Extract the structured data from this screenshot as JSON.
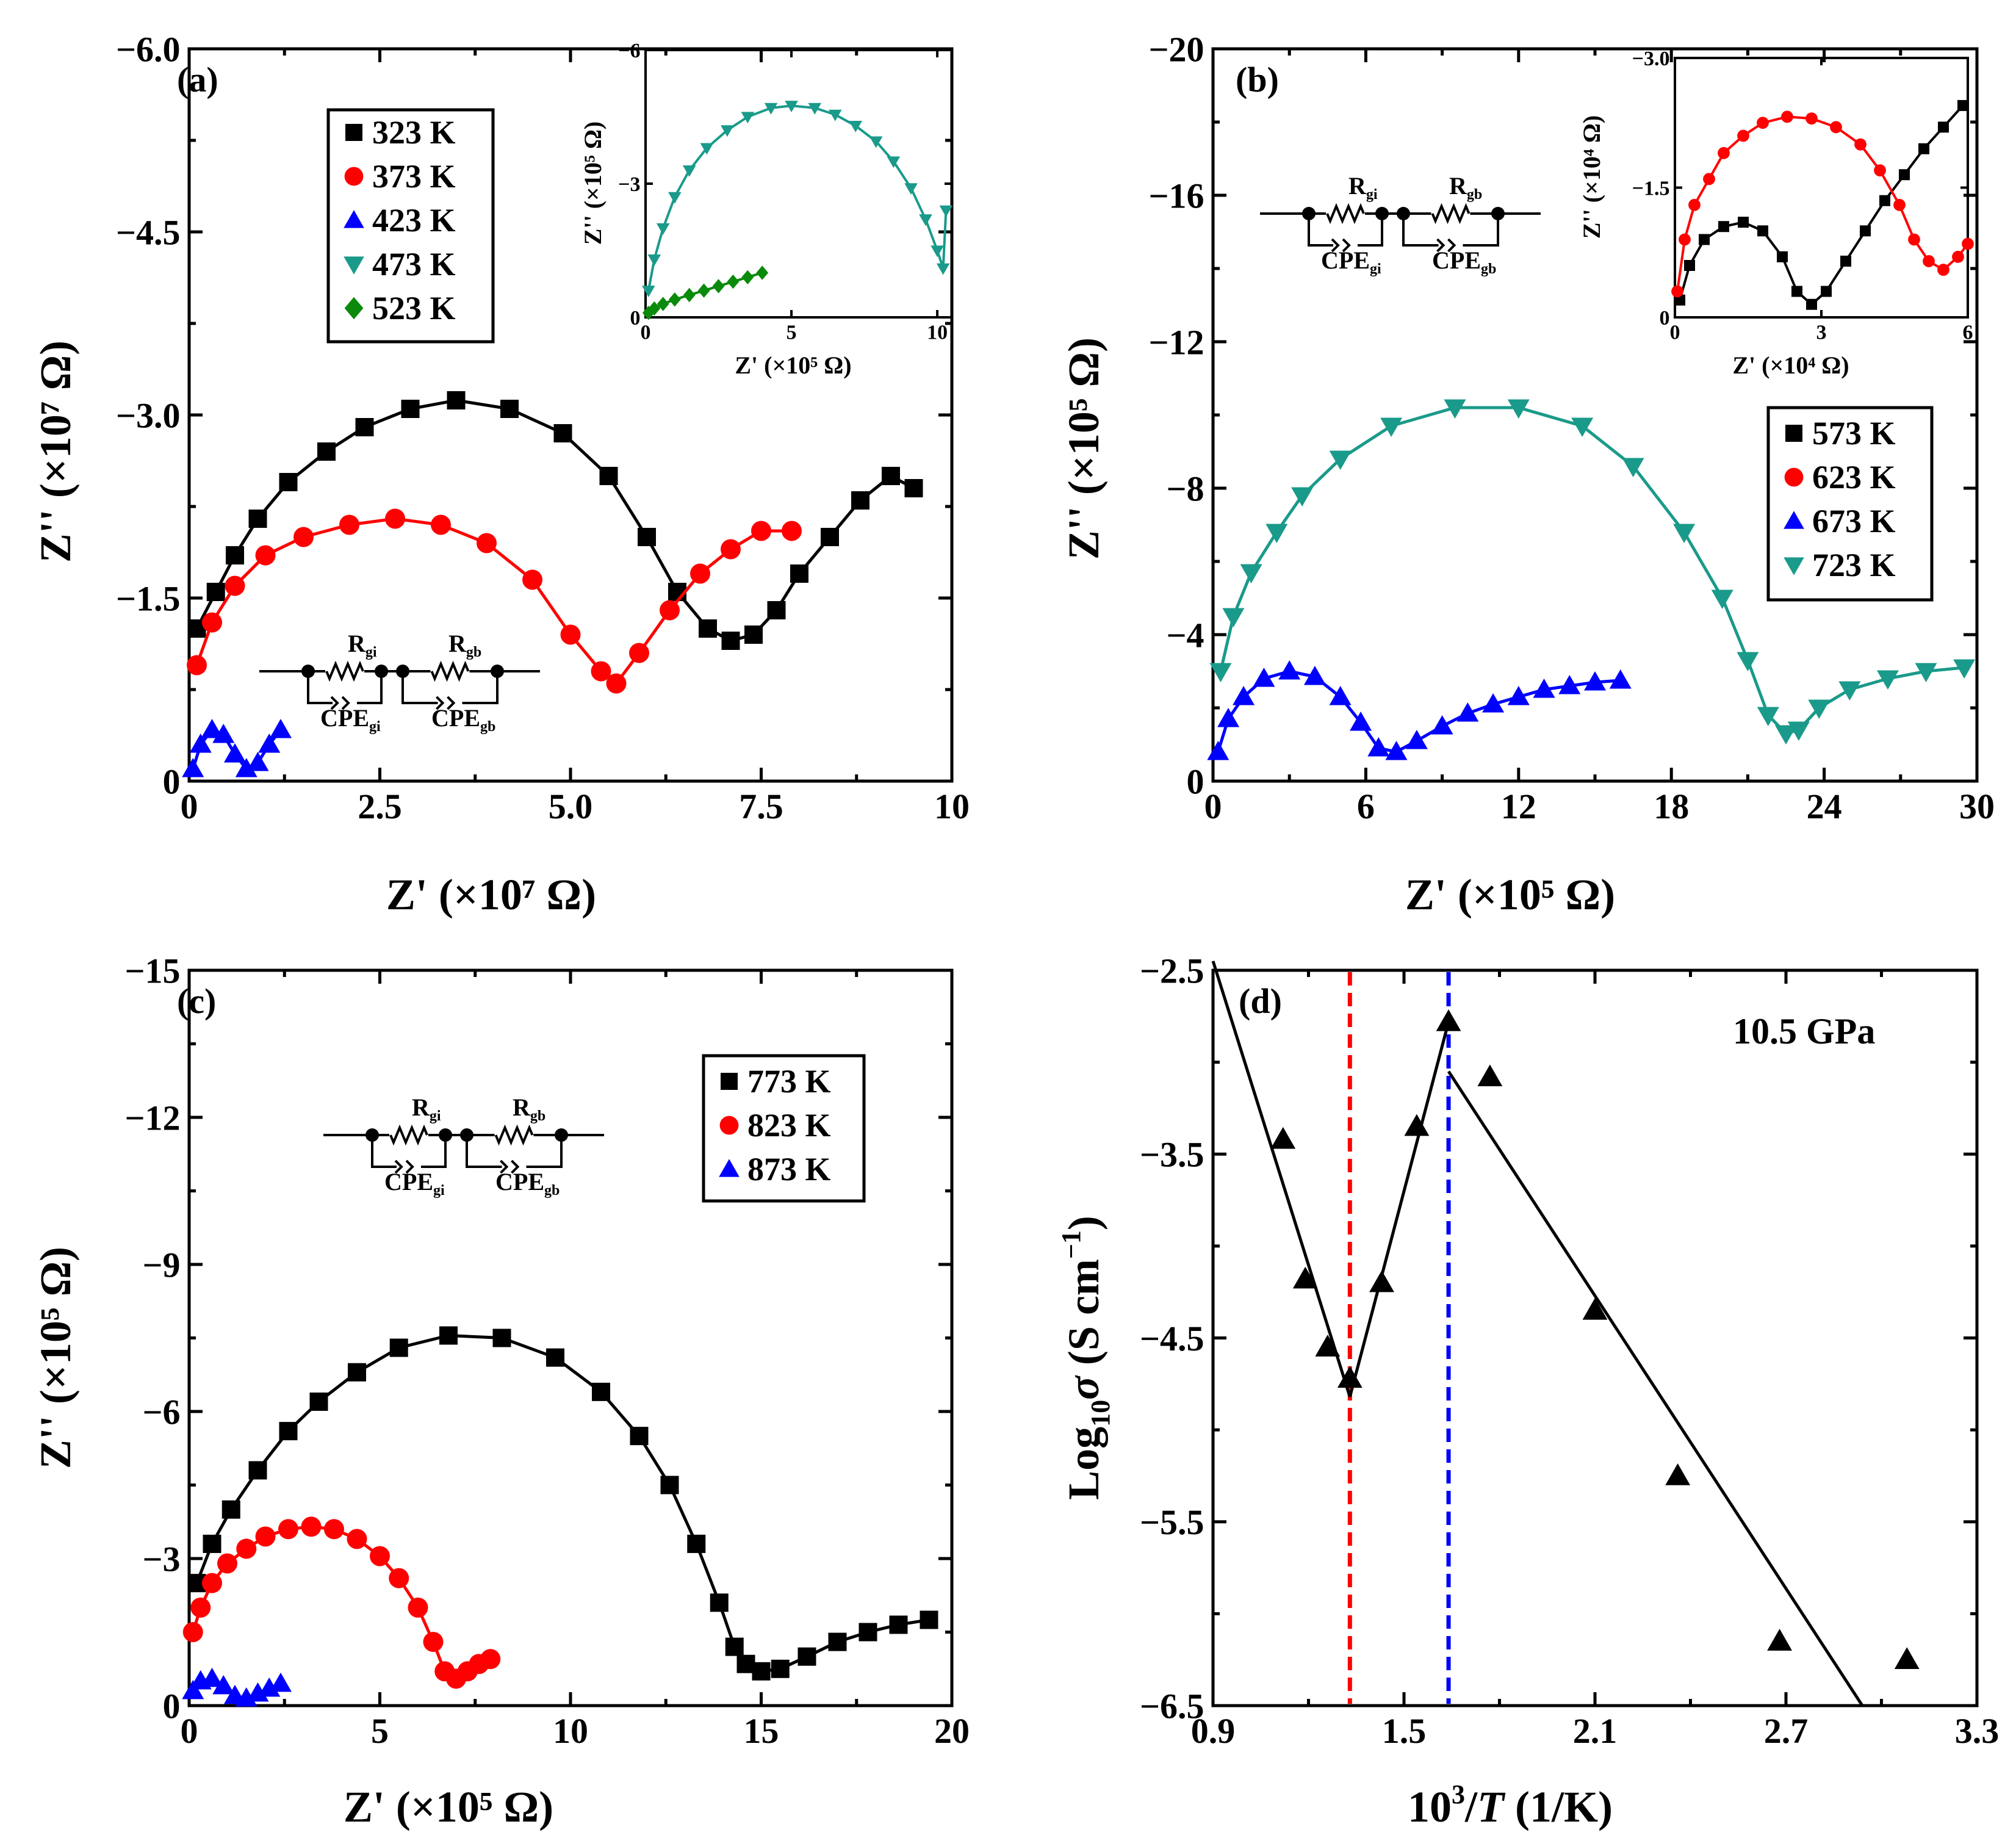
{
  "figure": {
    "description_free": true
  },
  "chart_data": [
    {
      "panel": "a",
      "type": "scatter",
      "panel_label": "(a)",
      "xlabel": "Z' (×10⁷ Ω)",
      "ylabel": "Z'' (×10⁷ Ω)",
      "xlim": [
        0,
        10
      ],
      "ylim": [
        0,
        -6.0
      ],
      "x_ticks": [
        "0",
        "2.5",
        "5.0",
        "7.5",
        "10"
      ],
      "x_tick_values": [
        0,
        2.5,
        5.0,
        7.5,
        10
      ],
      "y_ticks": [
        "0",
        "−1.5",
        "−3.0",
        "−4.5",
        "−6.0"
      ],
      "y_tick_values": [
        0,
        -1.5,
        -3.0,
        -4.5,
        -6.0
      ],
      "circuit": {
        "r1": "R",
        "r1_sub": "gi",
        "r2": "R",
        "r2_sub": "gb",
        "c1": "CPE",
        "c1_sub": "gi",
        "c2": "CPE",
        "c2_sub": "gb"
      },
      "series": [
        {
          "name": "323 K",
          "color": "#000000",
          "marker": "square",
          "x": [
            0.1,
            0.35,
            0.6,
            0.9,
            1.3,
            1.8,
            2.3,
            2.9,
            3.5,
            4.2,
            4.9,
            5.5,
            6.0,
            6.4,
            6.8,
            7.1,
            7.4,
            7.7,
            8.0,
            8.4,
            8.8,
            9.2,
            9.5
          ],
          "y": [
            -1.25,
            -1.55,
            -1.85,
            -2.15,
            -2.45,
            -2.7,
            -2.9,
            -3.05,
            -3.12,
            -3.05,
            -2.85,
            -2.5,
            -2.0,
            -1.55,
            -1.25,
            -1.15,
            -1.2,
            -1.4,
            -1.7,
            -2.0,
            -2.3,
            -2.5,
            -2.4
          ]
        },
        {
          "name": "373 K",
          "color": "#ff0000",
          "marker": "circle",
          "x": [
            0.1,
            0.3,
            0.6,
            1.0,
            1.5,
            2.1,
            2.7,
            3.3,
            3.9,
            4.5,
            5.0,
            5.4,
            5.6,
            5.9,
            6.3,
            6.7,
            7.1,
            7.5,
            7.9
          ],
          "y": [
            -0.95,
            -1.3,
            -1.6,
            -1.85,
            -2.0,
            -2.1,
            -2.15,
            -2.1,
            -1.95,
            -1.65,
            -1.2,
            -0.9,
            -0.8,
            -1.05,
            -1.4,
            -1.7,
            -1.9,
            -2.05,
            -2.05
          ]
        },
        {
          "name": "423 K",
          "color": "#0000ff",
          "marker": "triangle-up",
          "x": [
            0.05,
            0.15,
            0.3,
            0.45,
            0.6,
            0.75,
            0.9,
            1.05,
            1.2
          ],
          "y": [
            -0.1,
            -0.3,
            -0.42,
            -0.38,
            -0.22,
            -0.1,
            -0.15,
            -0.3,
            -0.42
          ]
        },
        {
          "name": "473 K",
          "color": "#1a9a8a",
          "marker": "triangle-down",
          "x": [],
          "y": []
        },
        {
          "name": "523 K",
          "color": "#0a8a0a",
          "marker": "diamond",
          "x": [],
          "y": []
        }
      ],
      "inset": {
        "xlabel": "Z' (×10⁵ Ω)",
        "ylabel": "Z'' (×10⁵ Ω)",
        "xlim": [
          0,
          10.5
        ],
        "ylim": [
          0,
          -6
        ],
        "x_ticks": [
          "0",
          "5",
          "10"
        ],
        "x_tick_values": [
          0,
          5,
          10
        ],
        "y_ticks": [
          "0",
          "−3",
          "−6"
        ],
        "y_tick_values": [
          0,
          -3,
          -6
        ],
        "series": [
          {
            "name": "473 K",
            "color": "#1a9a8a",
            "marker": "triangle-down",
            "x": [
              0.1,
              0.3,
              0.6,
              1.0,
              1.5,
              2.1,
              2.8,
              3.5,
              4.3,
              5.0,
              5.8,
              6.5,
              7.2,
              7.9,
              8.5,
              9.1,
              9.6,
              10.0,
              10.2,
              10.3
            ],
            "y": [
              -0.6,
              -1.3,
              -2.0,
              -2.7,
              -3.3,
              -3.8,
              -4.2,
              -4.5,
              -4.7,
              -4.75,
              -4.7,
              -4.55,
              -4.3,
              -3.95,
              -3.5,
              -2.9,
              -2.2,
              -1.5,
              -1.1,
              -2.4
            ]
          },
          {
            "name": "523 K",
            "color": "#0a8a0a",
            "marker": "diamond",
            "x": [
              0.1,
              0.3,
              0.6,
              1.0,
              1.5,
              2.0,
              2.5,
              3.0,
              3.5,
              4.0
            ],
            "y": [
              -0.1,
              -0.2,
              -0.3,
              -0.4,
              -0.5,
              -0.6,
              -0.7,
              -0.8,
              -0.9,
              -1.0
            ]
          }
        ]
      }
    },
    {
      "panel": "b",
      "type": "scatter",
      "panel_label": "(b)",
      "xlabel": "Z' (×10⁵ Ω)",
      "ylabel": "Z'' (×10⁵ Ω)",
      "xlim": [
        0,
        30
      ],
      "ylim": [
        0,
        -20
      ],
      "x_ticks": [
        "0",
        "6",
        "12",
        "18",
        "24",
        "30"
      ],
      "x_tick_values": [
        0,
        6,
        12,
        18,
        24,
        30
      ],
      "y_ticks": [
        "0",
        "−4",
        "−8",
        "−12",
        "−16",
        "−20"
      ],
      "y_tick_values": [
        0,
        -4,
        -8,
        -12,
        -16,
        -20
      ],
      "circuit": {
        "r1": "R",
        "r1_sub": "gi",
        "r2": "R",
        "r2_sub": "gb",
        "c1": "CPE",
        "c1_sub": "gi",
        "c2": "CPE",
        "c2_sub": "gb"
      },
      "series": [
        {
          "name": "573 K",
          "color": "#000000",
          "marker": "square",
          "x": [],
          "y": []
        },
        {
          "name": "623 K",
          "color": "#ff0000",
          "marker": "circle",
          "x": [],
          "y": []
        },
        {
          "name": "673 K",
          "color": "#0000ff",
          "marker": "triangle-up",
          "x": [
            0.2,
            0.6,
            1.2,
            2.0,
            3.0,
            4.0,
            5.0,
            5.8,
            6.5,
            7.2,
            8.0,
            9.0,
            10.0,
            11.0,
            12.0,
            13.0,
            14.0,
            15.0,
            16.0
          ],
          "y": [
            -0.8,
            -1.7,
            -2.3,
            -2.8,
            -3.0,
            -2.85,
            -2.3,
            -1.6,
            -0.9,
            -0.8,
            -1.1,
            -1.5,
            -1.85,
            -2.1,
            -2.3,
            -2.5,
            -2.6,
            -2.7,
            -2.75
          ]
        },
        {
          "name": "723 K",
          "color": "#1a9a8a",
          "marker": "triangle-down",
          "x": [
            0.3,
            0.8,
            1.5,
            2.5,
            3.5,
            5.0,
            7.0,
            9.5,
            12.0,
            14.5,
            16.5,
            18.5,
            20.0,
            21.0,
            21.8,
            22.5,
            23.0,
            23.8,
            25.0,
            26.5,
            28.0,
            29.5
          ],
          "y": [
            -3.0,
            -4.5,
            -5.7,
            -6.8,
            -7.8,
            -8.8,
            -9.7,
            -10.2,
            -10.2,
            -9.7,
            -8.6,
            -6.8,
            -5.0,
            -3.3,
            -1.8,
            -1.3,
            -1.4,
            -2.0,
            -2.5,
            -2.8,
            -3.0,
            -3.1
          ]
        }
      ],
      "inset": {
        "xlabel": "Z' (×10⁴ Ω)",
        "ylabel": "Z'' (×10⁴ Ω)",
        "xlim": [
          0,
          6
        ],
        "ylim": [
          0,
          -3.0
        ],
        "x_ticks": [
          "0",
          "3",
          "6"
        ],
        "x_tick_values": [
          0,
          3,
          6
        ],
        "y_ticks": [
          "0",
          "−1.5",
          "−3.0"
        ],
        "y_tick_values": [
          0,
          -1.5,
          -3.0
        ],
        "series": [
          {
            "name": "573 K",
            "color": "#000000",
            "marker": "square",
            "x": [
              0.1,
              0.3,
              0.6,
              1.0,
              1.4,
              1.8,
              2.2,
              2.5,
              2.8,
              3.1,
              3.5,
              3.9,
              4.3,
              4.7,
              5.1,
              5.5,
              5.9
            ],
            "y": [
              -0.2,
              -0.6,
              -0.9,
              -1.05,
              -1.1,
              -1.0,
              -0.7,
              -0.3,
              -0.15,
              -0.3,
              -0.65,
              -1.0,
              -1.35,
              -1.65,
              -1.95,
              -2.2,
              -2.45
            ]
          },
          {
            "name": "623 K",
            "color": "#ff0000",
            "marker": "circle",
            "x": [
              0.05,
              0.2,
              0.4,
              0.7,
              1.0,
              1.4,
              1.8,
              2.3,
              2.8,
              3.3,
              3.8,
              4.2,
              4.6,
              4.9,
              5.2,
              5.5,
              5.8,
              6.0
            ],
            "y": [
              -0.3,
              -0.9,
              -1.3,
              -1.6,
              -1.9,
              -2.1,
              -2.25,
              -2.32,
              -2.3,
              -2.2,
              -2.0,
              -1.7,
              -1.3,
              -0.9,
              -0.65,
              -0.55,
              -0.7,
              -0.85
            ]
          }
        ]
      }
    },
    {
      "panel": "c",
      "type": "scatter",
      "panel_label": "(c)",
      "xlabel": "Z' (×10⁵ Ω)",
      "ylabel": "Z'' (×10⁵ Ω)",
      "xlim": [
        0,
        20
      ],
      "ylim": [
        0,
        -15
      ],
      "x_ticks": [
        "0",
        "5",
        "10",
        "15",
        "20"
      ],
      "x_tick_values": [
        0,
        5,
        10,
        15,
        20
      ],
      "y_ticks": [
        "0",
        "−3",
        "−6",
        "−9",
        "−12",
        "−15"
      ],
      "y_tick_values": [
        0,
        -3,
        -6,
        -9,
        -12,
        -15
      ],
      "circuit": {
        "r1": "R",
        "r1_sub": "gi",
        "r2": "R",
        "r2_sub": "gb",
        "c1": "CPE",
        "c1_sub": "gi",
        "c2": "CPE",
        "c2_sub": "gb"
      },
      "series": [
        {
          "name": "773 K",
          "color": "#000000",
          "marker": "square",
          "x": [
            0.2,
            0.6,
            1.1,
            1.8,
            2.6,
            3.4,
            4.4,
            5.5,
            6.8,
            8.2,
            9.6,
            10.8,
            11.8,
            12.6,
            13.3,
            13.9,
            14.3,
            14.6,
            15.0,
            15.5,
            16.2,
            17.0,
            17.8,
            18.6,
            19.4
          ],
          "y": [
            -2.5,
            -3.3,
            -4.0,
            -4.8,
            -5.6,
            -6.2,
            -6.8,
            -7.3,
            -7.55,
            -7.5,
            -7.1,
            -6.4,
            -5.5,
            -4.5,
            -3.3,
            -2.1,
            -1.2,
            -0.85,
            -0.7,
            -0.75,
            -1.0,
            -1.3,
            -1.5,
            -1.65,
            -1.75
          ]
        },
        {
          "name": "823 K",
          "color": "#ff0000",
          "marker": "circle",
          "x": [
            0.1,
            0.3,
            0.6,
            1.0,
            1.5,
            2.0,
            2.6,
            3.2,
            3.8,
            4.4,
            5.0,
            5.5,
            6.0,
            6.4,
            6.7,
            7.0,
            7.3,
            7.6,
            7.9
          ],
          "y": [
            -1.5,
            -2.0,
            -2.5,
            -2.9,
            -3.2,
            -3.45,
            -3.6,
            -3.65,
            -3.6,
            -3.4,
            -3.05,
            -2.6,
            -2.0,
            -1.3,
            -0.7,
            -0.55,
            -0.7,
            -0.85,
            -0.95
          ]
        },
        {
          "name": "873 K",
          "color": "#0000ff",
          "marker": "triangle-up",
          "x": [
            0.1,
            0.3,
            0.6,
            0.9,
            1.2,
            1.5,
            1.8,
            2.1,
            2.4
          ],
          "y": [
            -0.3,
            -0.5,
            -0.55,
            -0.4,
            -0.2,
            -0.15,
            -0.25,
            -0.35,
            -0.45
          ]
        }
      ]
    },
    {
      "panel": "d",
      "type": "scatter",
      "panel_label": "(d)",
      "annotation": "10.5  GPa",
      "xlabel_parts": [
        "10",
        "3",
        "/",
        "T",
        " (1/K)"
      ],
      "ylabel_parts": [
        "Log",
        "10",
        "σ",
        " (S cm",
        "−1",
        ")"
      ],
      "xlim": [
        0.9,
        3.3
      ],
      "ylim": [
        -6.5,
        -2.5
      ],
      "x_ticks": [
        "0.9",
        "1.5",
        "2.1",
        "2.7",
        "3.3"
      ],
      "x_tick_values": [
        0.9,
        1.5,
        2.1,
        2.7,
        3.3
      ],
      "y_ticks": [
        "−6.5",
        "−5.5",
        "−4.5",
        "−3.5",
        "−2.5"
      ],
      "y_tick_values": [
        -6.5,
        -5.5,
        -4.5,
        -3.5,
        -2.5
      ],
      "points": {
        "x": [
          1.12,
          1.19,
          1.26,
          1.33,
          1.43,
          1.54,
          1.64,
          1.77,
          2.1,
          2.36,
          2.68,
          3.08
        ],
        "y": [
          -3.42,
          -4.18,
          -4.55,
          -4.72,
          -4.2,
          -3.35,
          -2.78,
          -3.08,
          -4.35,
          -5.25,
          -6.15,
          -6.25
        ]
      },
      "fit_lines": [
        {
          "x": [
            0.9,
            1.33
          ],
          "y": [
            -2.45,
            -4.82
          ]
        },
        {
          "x": [
            1.33,
            1.64
          ],
          "y": [
            -4.82,
            -2.78
          ]
        },
        {
          "x": [
            1.64,
            2.94
          ],
          "y": [
            -3.05,
            -6.5
          ]
        }
      ],
      "vlines": [
        {
          "x": 1.33,
          "color": "#ff0000"
        },
        {
          "x": 1.64,
          "color": "#0000ff"
        }
      ]
    }
  ]
}
